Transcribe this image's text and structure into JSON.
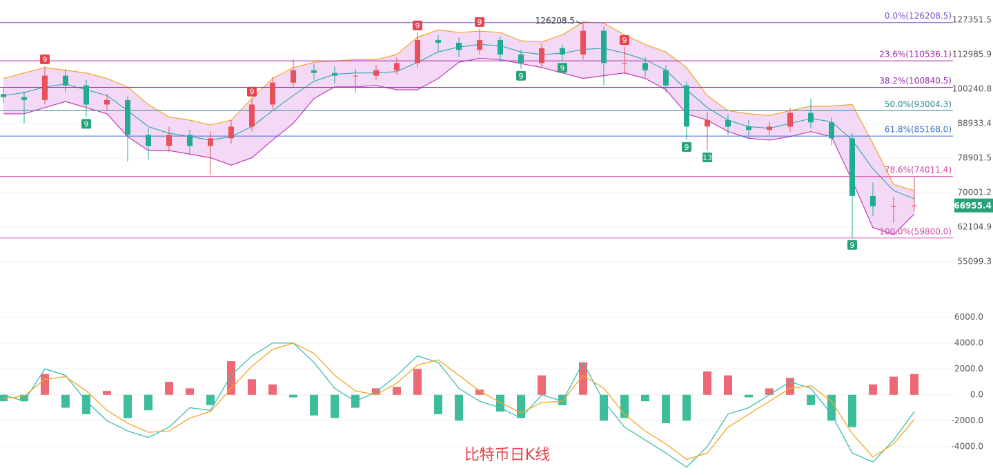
{
  "caption": "比特币日K线",
  "chart_data": [
    {
      "type": "candlestick",
      "log_scale": true,
      "grid": true,
      "up_color": "#e8505b",
      "down_color": "#22ab94",
      "ylim": [
        49950,
        136500
      ],
      "yticks": [
        127351.5,
        112985.9,
        100240.8,
        88933.4,
        78901.5,
        70001.2,
        62104.9,
        55099.3
      ],
      "open": [
        98500,
        97500,
        96500,
        105000,
        101500,
        95000,
        96500,
        85500,
        82300,
        85500,
        82300,
        84500,
        88000,
        95000,
        102500,
        107000,
        106000,
        105000,
        105000,
        107000,
        109700,
        118800,
        117700,
        114800,
        118800,
        113000,
        109700,
        115500,
        113000,
        122700,
        109700,
        109700,
        107000,
        101500,
        88000,
        90000,
        88000,
        87000,
        88000,
        92300,
        89300,
        84500,
        69200,
        66800,
        66800
      ],
      "high": [
        100500,
        99500,
        108500,
        107500,
        103500,
        98500,
        98000,
        87500,
        88000,
        87000,
        86500,
        90000,
        97000,
        104500,
        111000,
        109500,
        108500,
        107500,
        109000,
        112000,
        122000,
        121000,
        120000,
        123500,
        120500,
        115000,
        117500,
        117000,
        126208.5,
        124500,
        116000,
        112000,
        109000,
        103000,
        92500,
        92000,
        90000,
        89500,
        94000,
        97000,
        91000,
        86000,
        72500,
        69000,
        73800
      ],
      "low": [
        95500,
        89000,
        95000,
        99000,
        91000,
        93000,
        78000,
        78500,
        80500,
        80000,
        74500,
        83000,
        86500,
        93500,
        101000,
        103500,
        102000,
        99000,
        103500,
        105500,
        108000,
        114000,
        112000,
        113000,
        110000,
        107500,
        108000,
        110500,
        111000,
        101500,
        105500,
        104500,
        99000,
        84000,
        81000,
        85500,
        84500,
        85500,
        86500,
        87500,
        82500,
        59800,
        64500,
        63000,
        65500
      ],
      "close": [
        97500,
        96500,
        105000,
        101500,
        95000,
        96500,
        85500,
        82300,
        85500,
        82300,
        84500,
        88000,
        95000,
        102500,
        107000,
        106000,
        105000,
        105000,
        107000,
        109700,
        118800,
        117700,
        114800,
        118800,
        113000,
        109700,
        115500,
        113000,
        122700,
        109700,
        109700,
        107000,
        101500,
        88000,
        90000,
        88000,
        87000,
        88000,
        92300,
        89300,
        84500,
        69200,
        66800,
        66800,
        66955.4
      ],
      "bollinger": {
        "fill": "#f4d9f6",
        "upper": {
          "color": "#f5a623",
          "values": [
            104000,
            106000,
            108000,
            107000,
            106000,
            104000,
            101000,
            95000,
            91000,
            90000,
            88500,
            90000,
            97000,
            104000,
            108000,
            110000,
            110500,
            111000,
            111000,
            113000,
            120000,
            123000,
            122000,
            122500,
            122000,
            118500,
            118000,
            121000,
            126500,
            126000,
            121000,
            117000,
            114000,
            108000,
            98000,
            93000,
            92000,
            91500,
            93000,
            94500,
            94500,
            95000,
            83000,
            72000,
            70500
          ]
        },
        "middle": {
          "color": "#3aa8b5",
          "values": [
            98000,
            99000,
            101000,
            102000,
            100000,
            98000,
            93000,
            88000,
            86000,
            85000,
            84000,
            85000,
            88000,
            93000,
            98000,
            103000,
            105500,
            106000,
            106000,
            106500,
            110000,
            114000,
            116000,
            117000,
            116500,
            114000,
            113000,
            113500,
            115000,
            115500,
            113500,
            111000,
            107000,
            100000,
            94000,
            90000,
            88000,
            87500,
            89000,
            90500,
            89500,
            84000,
            76000,
            70500,
            68500
          ]
        },
        "lower": {
          "color": "#c23bb5",
          "values": [
            92000,
            92000,
            94000,
            96000,
            94000,
            92000,
            85000,
            81000,
            81000,
            80000,
            79000,
            77000,
            79000,
            84000,
            89000,
            97000,
            101000,
            101000,
            101500,
            100000,
            100000,
            104000,
            110000,
            111500,
            111000,
            109500,
            108000,
            106000,
            104000,
            105000,
            106000,
            104000,
            100000,
            92000,
            90000,
            86500,
            84500,
            84000,
            85000,
            86500,
            85000,
            73000,
            62000,
            60500,
            65000
          ]
        }
      },
      "fib_levels": [
        {
          "label": "0.0%(126208.5)",
          "value": 126208.5,
          "color": "#7b4fd0"
        },
        {
          "label": "23.6%(110536.1)",
          "value": 110536.1,
          "color": "#a22fa8"
        },
        {
          "label": "38.2%(100840.5)",
          "value": 100840.5,
          "color": "#9c27b0"
        },
        {
          "label": "50.0%(93004.3)",
          "value": 93004.3,
          "color": "#2a8c94"
        },
        {
          "label": "61.8%(85168.0)",
          "value": 85168.0,
          "color": "#3f6fd1"
        },
        {
          "label": "78.6%(74011.4)",
          "value": 74011.4,
          "color": "#d447a6"
        },
        {
          "label": "100.0%(59800.0)",
          "value": 59800.0,
          "color": "#d447a6"
        }
      ],
      "high_marker": 126208.5,
      "current_price": 66955.4,
      "current_color": "#26a17b",
      "td_signals": [
        {
          "label": "9",
          "at": 2,
          "side": "high",
          "color": "#e8424f"
        },
        {
          "label": "9",
          "at": 12,
          "side": "high",
          "color": "#e8424f"
        },
        {
          "label": "9",
          "at": 20,
          "side": "high",
          "color": "#e8424f"
        },
        {
          "label": "9",
          "at": 23,
          "side": "high",
          "color": "#e8424f"
        },
        {
          "label": "9",
          "at": 30,
          "side": "high",
          "color": "#e8424f"
        },
        {
          "label": "9",
          "at": 4,
          "side": "low",
          "color": "#26a17b"
        },
        {
          "label": "9",
          "at": 25,
          "side": "low",
          "color": "#26a17b"
        },
        {
          "label": "9",
          "at": 27,
          "side": "low",
          "color": "#26a17b"
        },
        {
          "label": "9",
          "at": 33,
          "side": "low",
          "color": "#26a17b"
        },
        {
          "label": "13",
          "at": 34,
          "side": "low",
          "color": "#26a17b"
        },
        {
          "label": "9",
          "at": 41,
          "side": "low",
          "color": "#26a17b"
        }
      ]
    },
    {
      "type": "macd",
      "grid": true,
      "ylim": [
        -6200,
        8100
      ],
      "yticks": [
        {
          "value": 6000,
          "label": "6000.0"
        },
        {
          "value": 4000,
          "label": "4000.0"
        },
        {
          "value": 2000,
          "label": "2000.0"
        },
        {
          "value": 0,
          "label": "0.0"
        },
        {
          "value": -2000,
          "label": "-2000.0"
        },
        {
          "value": -4000,
          "label": "-4000.0"
        }
      ],
      "histogram": {
        "up_color": "#ec6a76",
        "down_color": "#3dbd9b",
        "values": [
          -500,
          -500,
          1600,
          -1000,
          -1500,
          300,
          -1800,
          -1200,
          1000,
          500,
          -800,
          2600,
          1200,
          800,
          -200,
          -1600,
          -1800,
          -1000,
          500,
          600,
          2000,
          -1500,
          -2000,
          400,
          -1300,
          -1800,
          1500,
          -800,
          2500,
          -2000,
          -1800,
          -500,
          -2200,
          -2000,
          1800,
          1500,
          -200,
          500,
          1300,
          -800,
          -2000,
          -2500,
          800,
          1400,
          1600
        ]
      },
      "series": [
        {
          "color": "#3cbdb0",
          "values": [
            0,
            -500,
            2000,
            1500,
            -500,
            -2000,
            -2800,
            -3300,
            -2500,
            -1000,
            -1200,
            1500,
            3000,
            4000,
            4000,
            2500,
            500,
            -500,
            200,
            1500,
            3000,
            2500,
            500,
            -500,
            -1000,
            -1800,
            0,
            -500,
            2500,
            -500,
            -2500,
            -3500,
            -4500,
            -5600,
            -4000,
            -1500,
            -1000,
            0,
            1000,
            500,
            -1500,
            -4500,
            -5200,
            -3500,
            -1300
          ]
        },
        {
          "color": "#f5a623",
          "values": [
            -300,
            -100,
            1200,
            1400,
            300,
            -1200,
            -2200,
            -2900,
            -2800,
            -1800,
            -1300,
            500,
            2200,
            3500,
            4000,
            3200,
            1500,
            300,
            0,
            900,
            2300,
            2700,
            1500,
            300,
            -600,
            -1400,
            -600,
            -500,
            1500,
            500,
            -1500,
            -2800,
            -3800,
            -5000,
            -4500,
            -2500,
            -1500,
            -500,
            500,
            700,
            -500,
            -3000,
            -4800,
            -3800,
            -1900
          ]
        }
      ]
    }
  ]
}
